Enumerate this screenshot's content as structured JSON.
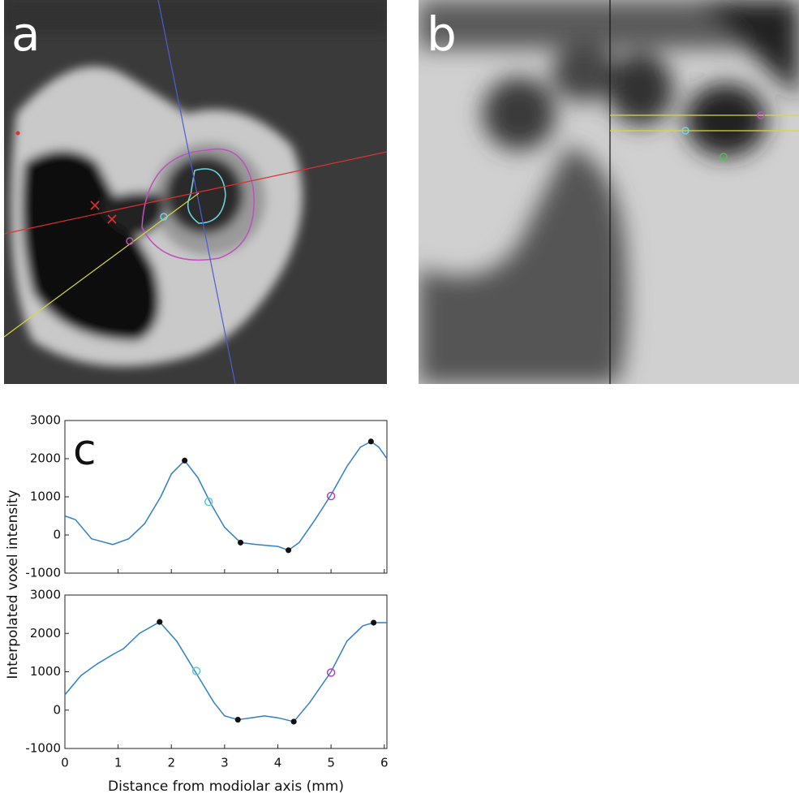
{
  "panel_labels": [
    "a",
    "b",
    "c"
  ],
  "chart_data": [
    {
      "type": "line",
      "ylabel": "Interpolated voxel intensity",
      "xlim": [
        0,
        6.05
      ],
      "ylim": [
        -1000,
        3000
      ],
      "yticks": [
        -1000,
        0,
        1000,
        2000,
        3000
      ],
      "xticks": [
        0,
        1,
        2,
        3,
        4,
        5,
        6
      ],
      "series": [
        {
          "color": "#2f7fc8",
          "x": [
            0,
            0.2,
            0.5,
            0.9,
            1.2,
            1.5,
            1.8,
            2.0,
            2.25,
            2.5,
            2.75,
            3.0,
            3.3,
            3.6,
            4.0,
            4.2,
            4.4,
            4.7,
            5.0,
            5.3,
            5.55,
            5.75,
            5.9,
            6.05
          ],
          "values": [
            500,
            400,
            -100,
            -250,
            -100,
            300,
            1000,
            1600,
            1950,
            1500,
            800,
            200,
            -200,
            -250,
            -300,
            -400,
            -200,
            400,
            1050,
            1800,
            2300,
            2450,
            2300,
            2000
          ]
        }
      ],
      "points": [
        {
          "color": "#111111",
          "x": [
            2.25,
            3.3,
            4.2,
            5.75
          ],
          "values": [
            1950,
            -200,
            -400,
            2450
          ]
        },
        {
          "color": "#5bc8d6",
          "x": [
            2.7
          ],
          "values": [
            870
          ]
        },
        {
          "color": "#b23fb2",
          "x": [
            5.0
          ],
          "values": [
            1020
          ]
        }
      ]
    },
    {
      "type": "line",
      "xlabel": "Distance from modiolar axis (mm)",
      "xlim": [
        0,
        6.05
      ],
      "ylim": [
        -1000,
        3000
      ],
      "yticks": [
        -1000,
        0,
        1000,
        2000,
        3000
      ],
      "xticks": [
        0,
        1,
        2,
        3,
        4,
        5,
        6
      ],
      "series": [
        {
          "color": "#2f7fc8",
          "x": [
            0,
            0.3,
            0.6,
            0.9,
            1.1,
            1.4,
            1.78,
            2.1,
            2.45,
            2.8,
            3.0,
            3.25,
            3.5,
            3.75,
            4.0,
            4.3,
            4.6,
            5.0,
            5.3,
            5.6,
            5.8,
            6.05
          ],
          "values": [
            400,
            900,
            1200,
            1450,
            1600,
            2000,
            2300,
            1800,
            1000,
            200,
            -150,
            -250,
            -200,
            -150,
            -200,
            -300,
            200,
            1000,
            1800,
            2200,
            2280,
            2280
          ]
        }
      ],
      "points": [
        {
          "color": "#111111",
          "x": [
            1.78,
            3.25,
            4.3,
            5.8
          ],
          "values": [
            2300,
            -250,
            -300,
            2280
          ]
        },
        {
          "color": "#5bc8d6",
          "x": [
            2.47
          ],
          "values": [
            1020
          ]
        },
        {
          "color": "#b23fb2",
          "x": [
            5.0
          ],
          "values": [
            980
          ]
        }
      ]
    }
  ]
}
